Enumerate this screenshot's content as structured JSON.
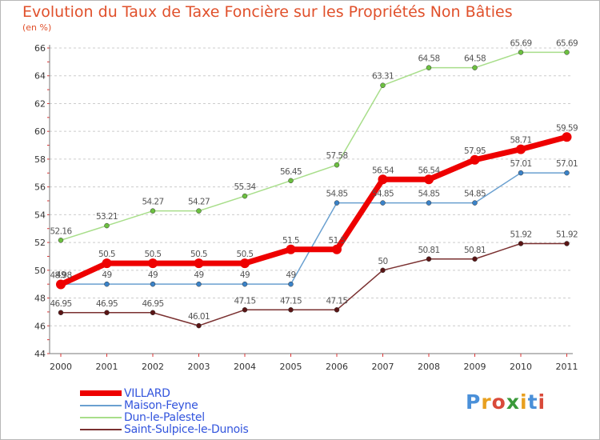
{
  "title": "Evolution du Taux de Taxe Foncière sur les Propriétés Non Bâties",
  "subtitle": "(en %)",
  "logo": {
    "text": "Proxiti",
    "colors": [
      "#4a90d9",
      "#e8a020",
      "#d94a3a",
      "#3a9a3a",
      "#e8a020",
      "#4a90d9",
      "#d94a3a"
    ]
  },
  "chart_data": {
    "type": "line",
    "title": "Evolution du Taux de Taxe Foncière sur les Propriétés Non Bâties",
    "ylabel": "(en %)",
    "xlabel": "",
    "x": [
      "2000",
      "2001",
      "2002",
      "2003",
      "2004",
      "2005",
      "2006",
      "2007",
      "2008",
      "2009",
      "2010",
      "2011"
    ],
    "ylim": [
      44,
      66
    ],
    "yticks": [
      44,
      46,
      48,
      50,
      52,
      54,
      56,
      58,
      60,
      62,
      64,
      66
    ],
    "grid": "dashed-horizontal",
    "legend_position": "bottom-left",
    "series": [
      {
        "name": "VILLARD",
        "color": "#ee0000",
        "width": 7,
        "marker_color": "#ee0000",
        "values": [
          48.98,
          50.5,
          50.5,
          50.5,
          50.5,
          51.5,
          51.5,
          56.54,
          56.54,
          57.95,
          58.71,
          59.59
        ],
        "labels": [
          "48.98",
          "50.5",
          "50.5",
          "50.5",
          "50.5",
          "51.5",
          "51.5",
          "56.54",
          "56.54",
          "57.95",
          "58.71",
          "59.59"
        ]
      },
      {
        "name": "Maison-Feyne",
        "color": "#6aa0d0",
        "width": 1.5,
        "marker_color": "#3a82c8",
        "values": [
          49,
          49,
          49,
          49,
          49,
          49,
          54.85,
          54.85,
          54.85,
          54.85,
          57.01,
          57.01
        ],
        "labels": [
          "49",
          "49",
          "49",
          "49",
          "49",
          "49",
          "54.85",
          "54.85",
          "54.85",
          "54.85",
          "57.01",
          "57.01"
        ]
      },
      {
        "name": "Dun-le-Palestel",
        "color": "#a8de8a",
        "width": 1.5,
        "marker_color": "#6cc040",
        "values": [
          52.16,
          53.21,
          54.27,
          54.27,
          55.34,
          56.45,
          57.58,
          63.31,
          64.58,
          64.58,
          65.69,
          65.69
        ],
        "labels": [
          "52.16",
          "53.21",
          "54.27",
          "54.27",
          "55.34",
          "56.45",
          "57.58",
          "63.31",
          "64.58",
          "64.58",
          "65.69",
          "65.69"
        ]
      },
      {
        "name": "Saint-Sulpice-le-Dunois",
        "color": "#7a3030",
        "width": 1.5,
        "marker_color": "#5a1515",
        "values": [
          46.95,
          46.95,
          46.95,
          46.01,
          47.15,
          47.15,
          47.15,
          50,
          50.81,
          50.81,
          51.92,
          51.92
        ],
        "labels": [
          "46.95",
          "46.95",
          "46.95",
          "46.01",
          "47.15",
          "47.15",
          "47.15",
          "50",
          "50.81",
          "50.81",
          "51.92",
          "51.92"
        ]
      }
    ]
  }
}
